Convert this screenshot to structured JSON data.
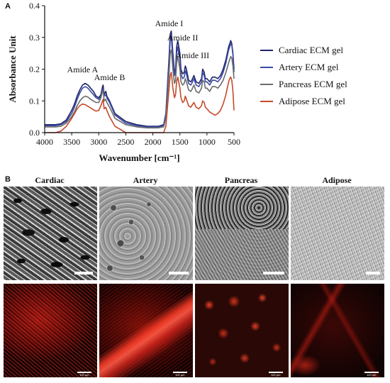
{
  "panel_a": {
    "letter": "A"
  },
  "panel_b": {
    "letter": "B",
    "columns": [
      {
        "title": "Cardiac"
      },
      {
        "title": "Artery"
      },
      {
        "title": "Pancreas"
      },
      {
        "title": "Adipose"
      }
    ],
    "fluorescence_scale_label": "100 μm"
  },
  "chart_data": {
    "type": "line",
    "xlabel": "Wavenumber [cm⁻¹]",
    "ylabel": "Absorbance Unit",
    "xlim": [
      4000,
      500
    ],
    "ylim": [
      0.0,
      0.4
    ],
    "x_ticks": [
      4000,
      3500,
      3000,
      2500,
      2000,
      1500,
      1000,
      500
    ],
    "y_ticks": [
      0.0,
      0.1,
      0.2,
      0.3,
      0.4
    ],
    "grid": false,
    "legend_position": "right",
    "annotations": [
      {
        "text": "Amide A",
        "x": 3300,
        "y": 0.19
      },
      {
        "text": "Amide B",
        "x": 2800,
        "y": 0.165
      },
      {
        "text": "Amide I",
        "x": 1700,
        "y": 0.335
      },
      {
        "text": "Amide II",
        "x": 1450,
        "y": 0.29
      },
      {
        "text": "Amide III",
        "x": 1270,
        "y": 0.235
      }
    ],
    "series": [
      {
        "name": "Cardiac ECM gel",
        "color": "#1e2566",
        "x": [
          4000,
          3800,
          3700,
          3600,
          3500,
          3450,
          3400,
          3350,
          3300,
          3250,
          3200,
          3150,
          3100,
          3050,
          3000,
          2960,
          2930,
          2920,
          2900,
          2870,
          2850,
          2800,
          2700,
          2500,
          2300,
          2100,
          1900,
          1800,
          1760,
          1700,
          1680,
          1660,
          1650,
          1630,
          1600,
          1580,
          1560,
          1540,
          1500,
          1480,
          1450,
          1420,
          1400,
          1380,
          1340,
          1300,
          1280,
          1240,
          1200,
          1150,
          1100,
          1080,
          1050,
          1030,
          1000,
          950,
          900,
          850,
          800,
          750,
          700,
          650,
          600,
          580,
          560,
          540,
          520,
          500
        ],
        "y": [
          0.025,
          0.025,
          0.028,
          0.04,
          0.07,
          0.09,
          0.115,
          0.135,
          0.15,
          0.155,
          0.15,
          0.14,
          0.13,
          0.115,
          0.11,
          0.12,
          0.145,
          0.15,
          0.12,
          0.13,
          0.115,
          0.1,
          0.06,
          0.035,
          0.025,
          0.02,
          0.02,
          0.025,
          0.06,
          0.24,
          0.31,
          0.32,
          0.3,
          0.25,
          0.19,
          0.2,
          0.27,
          0.29,
          0.25,
          0.2,
          0.185,
          0.19,
          0.21,
          0.2,
          0.165,
          0.16,
          0.165,
          0.18,
          0.16,
          0.155,
          0.17,
          0.2,
          0.19,
          0.17,
          0.17,
          0.16,
          0.175,
          0.175,
          0.17,
          0.18,
          0.2,
          0.23,
          0.27,
          0.28,
          0.29,
          0.28,
          0.25,
          0.2
        ]
      },
      {
        "name": "Artery ECM gel",
        "color": "#3d4aa6",
        "x": [
          4000,
          3800,
          3700,
          3600,
          3500,
          3450,
          3400,
          3350,
          3300,
          3250,
          3200,
          3150,
          3100,
          3050,
          3000,
          2960,
          2930,
          2920,
          2900,
          2870,
          2850,
          2800,
          2700,
          2500,
          2300,
          2100,
          1900,
          1800,
          1760,
          1700,
          1680,
          1660,
          1650,
          1630,
          1600,
          1580,
          1560,
          1540,
          1500,
          1480,
          1450,
          1420,
          1400,
          1380,
          1340,
          1300,
          1280,
          1240,
          1200,
          1150,
          1100,
          1080,
          1050,
          1030,
          1000,
          950,
          900,
          850,
          800,
          750,
          700,
          650,
          600,
          580,
          560,
          540,
          520,
          500
        ],
        "y": [
          0.022,
          0.022,
          0.025,
          0.035,
          0.06,
          0.08,
          0.105,
          0.125,
          0.14,
          0.145,
          0.14,
          0.13,
          0.12,
          0.11,
          0.105,
          0.115,
          0.135,
          0.14,
          0.115,
          0.12,
          0.11,
          0.095,
          0.055,
          0.03,
          0.022,
          0.018,
          0.018,
          0.022,
          0.055,
          0.22,
          0.29,
          0.3,
          0.28,
          0.23,
          0.18,
          0.19,
          0.25,
          0.27,
          0.23,
          0.185,
          0.17,
          0.175,
          0.195,
          0.185,
          0.155,
          0.15,
          0.155,
          0.17,
          0.15,
          0.145,
          0.16,
          0.19,
          0.18,
          0.16,
          0.16,
          0.15,
          0.165,
          0.165,
          0.16,
          0.17,
          0.19,
          0.22,
          0.26,
          0.27,
          0.28,
          0.275,
          0.245,
          0.19
        ]
      },
      {
        "name": "Pancreas ECM gel",
        "color": "#6b6b6b",
        "x": [
          4000,
          3800,
          3700,
          3600,
          3500,
          3450,
          3400,
          3350,
          3300,
          3250,
          3200,
          3150,
          3100,
          3050,
          3000,
          2960,
          2930,
          2920,
          2900,
          2870,
          2850,
          2800,
          2700,
          2500,
          2300,
          2100,
          1900,
          1800,
          1760,
          1700,
          1680,
          1660,
          1650,
          1630,
          1600,
          1580,
          1560,
          1540,
          1500,
          1480,
          1450,
          1420,
          1400,
          1380,
          1340,
          1300,
          1280,
          1240,
          1200,
          1150,
          1100,
          1080,
          1050,
          1030,
          1000,
          950,
          900,
          850,
          800,
          750,
          700,
          650,
          600,
          580,
          560,
          540,
          520,
          500
        ],
        "y": [
          0.018,
          0.018,
          0.02,
          0.03,
          0.05,
          0.065,
          0.085,
          0.1,
          0.11,
          0.115,
          0.112,
          0.105,
          0.1,
          0.095,
          0.095,
          0.11,
          0.13,
          0.135,
          0.1,
          0.105,
          0.095,
          0.08,
          0.045,
          0.025,
          0.018,
          0.015,
          0.015,
          0.018,
          0.045,
          0.19,
          0.25,
          0.26,
          0.245,
          0.2,
          0.155,
          0.165,
          0.22,
          0.24,
          0.2,
          0.16,
          0.15,
          0.155,
          0.17,
          0.16,
          0.135,
          0.13,
          0.135,
          0.15,
          0.13,
          0.125,
          0.14,
          0.165,
          0.16,
          0.14,
          0.14,
          0.13,
          0.145,
          0.145,
          0.14,
          0.15,
          0.165,
          0.19,
          0.22,
          0.23,
          0.24,
          0.235,
          0.21,
          0.17
        ]
      },
      {
        "name": "Adipose ECM gel",
        "color": "#c44a2a",
        "x": [
          4000,
          3800,
          3700,
          3600,
          3500,
          3450,
          3400,
          3350,
          3300,
          3250,
          3200,
          3150,
          3100,
          3050,
          3000,
          2960,
          2930,
          2920,
          2900,
          2870,
          2850,
          2800,
          2700,
          2500,
          2300,
          2100,
          1900,
          1800,
          1760,
          1700,
          1680,
          1660,
          1650,
          1630,
          1600,
          1580,
          1560,
          1540,
          1500,
          1480,
          1450,
          1420,
          1400,
          1380,
          1340,
          1300,
          1280,
          1240,
          1200,
          1150,
          1100,
          1080,
          1050,
          1030,
          1000,
          950,
          900,
          850,
          800,
          750,
          700,
          650,
          600,
          580,
          560,
          540,
          520,
          500
        ],
        "y": [
          0.0,
          0.0,
          0.005,
          0.02,
          0.045,
          0.06,
          0.075,
          0.085,
          0.09,
          0.088,
          0.083,
          0.078,
          0.072,
          0.068,
          0.07,
          0.085,
          0.1,
          0.105,
          0.075,
          0.08,
          0.07,
          0.05,
          0.02,
          0.0,
          0.0,
          0.0,
          0.0,
          0.0,
          0.02,
          0.14,
          0.18,
          0.19,
          0.175,
          0.14,
          0.11,
          0.12,
          0.16,
          0.175,
          0.14,
          0.11,
          0.095,
          0.1,
          0.115,
          0.105,
          0.085,
          0.08,
          0.085,
          0.095,
          0.08,
          0.075,
          0.085,
          0.1,
          0.095,
          0.08,
          0.075,
          0.065,
          0.06,
          0.055,
          0.06,
          0.07,
          0.09,
          0.12,
          0.16,
          0.17,
          0.175,
          0.165,
          0.13,
          0.07
        ]
      }
    ]
  }
}
